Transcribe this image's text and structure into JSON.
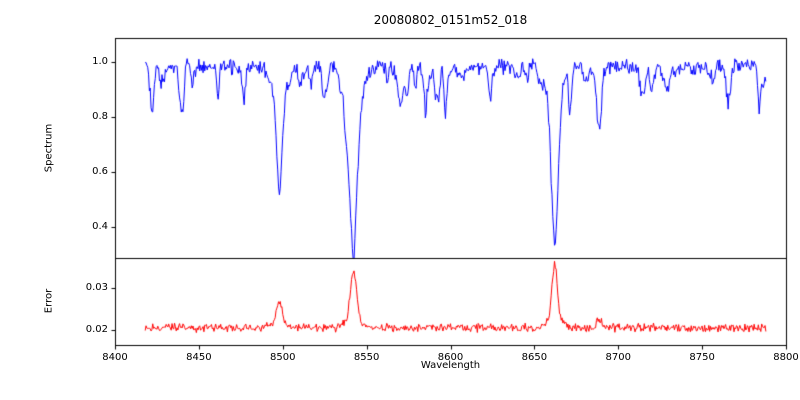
{
  "figure": {
    "background": "#ffffff",
    "spine_color": "#000000"
  },
  "chart_data": {
    "type": "line",
    "title": "20080802_0151m52_018",
    "xlabel": "Wavelength",
    "xlim": [
      8400,
      8800
    ],
    "x_data_range": [
      8418,
      8788
    ],
    "x_ticks": [
      8400,
      8450,
      8500,
      8550,
      8600,
      8650,
      8700,
      8750,
      8800
    ],
    "x_tick_labels": [
      "8400",
      "8450",
      "8500",
      "8550",
      "8600",
      "8650",
      "8700",
      "8750",
      "8800"
    ],
    "grid": false,
    "legend": "none",
    "seed": 42,
    "panels": [
      {
        "name": "spectrum",
        "ylabel": "Spectrum",
        "color": "#0000ff",
        "ylim": [
          0.287,
          1.087
        ],
        "yticks": [
          0.4,
          0.6,
          0.8,
          1.0
        ],
        "ytick_labels": [
          "0.4",
          "0.6",
          "0.8",
          "1.0"
        ],
        "continuum_level": 0.985,
        "noise_amplitude": 0.035,
        "minor_line_count": 70,
        "absorption_lines": [
          {
            "center": 8498.0,
            "depth": 0.45,
            "width": 1.7,
            "min_value": 0.53
          },
          {
            "center": 8542.1,
            "depth": 0.63,
            "width": 2.3,
            "min_value": 0.35
          },
          {
            "center": 8662.1,
            "depth": 0.62,
            "width": 2.1,
            "min_value": 0.36
          },
          {
            "center": 8688.6,
            "depth": 0.24,
            "width": 1.2,
            "min_value": 0.74
          }
        ]
      },
      {
        "name": "error",
        "ylabel": "Error",
        "color": "#ff0000",
        "ylim": [
          0.0164,
          0.0371
        ],
        "yticks": [
          0.02,
          0.03
        ],
        "ytick_labels": [
          "0.02",
          "0.03"
        ],
        "baseline": 0.0205,
        "noise_amplitude": 0.0012,
        "peaks": [
          {
            "center": 8498.0,
            "height": 0.0065,
            "width": 1.6,
            "max_value": 0.027
          },
          {
            "center": 8542.1,
            "height": 0.0135,
            "width": 1.8,
            "max_value": 0.034
          },
          {
            "center": 8662.1,
            "height": 0.0148,
            "width": 1.6,
            "max_value": 0.0353
          },
          {
            "center": 8688.6,
            "height": 0.002,
            "width": 1.2,
            "max_value": 0.0225
          }
        ]
      }
    ]
  }
}
